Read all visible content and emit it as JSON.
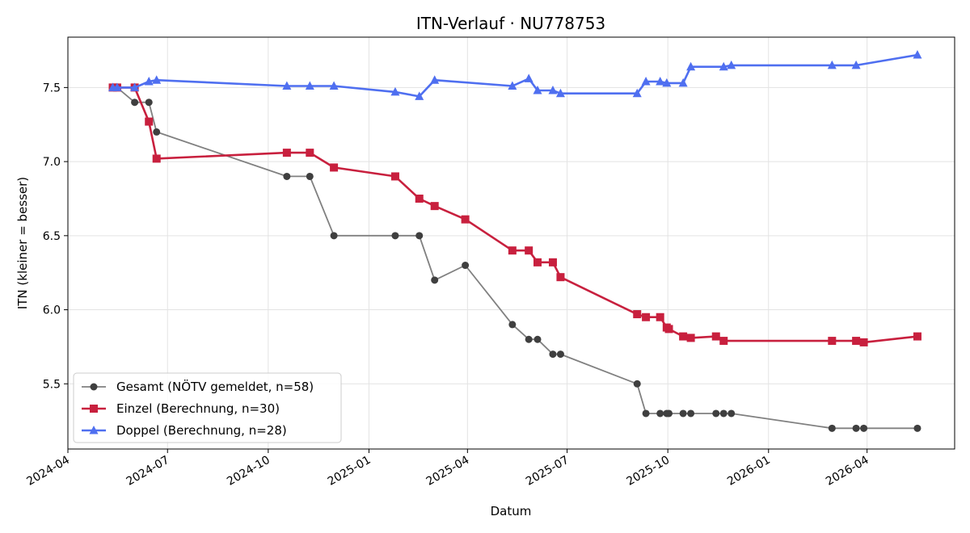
{
  "chart_data": {
    "type": "line",
    "title": "ITN-Verlauf · NU778753",
    "xlabel": "Datum",
    "ylabel": "ITN  (kleiner = besser)",
    "xlim": [
      "2024-04-01",
      "2026-06-20"
    ],
    "ylim": [
      5.06,
      7.84
    ],
    "x_ticks": [
      "2024-04",
      "2024-07",
      "2024-10",
      "2025-01",
      "2025-04",
      "2025-07",
      "2025-10",
      "2026-01",
      "2026-04"
    ],
    "y_ticks": [
      "5.5",
      "6.0",
      "6.5",
      "7.0",
      "7.5"
    ],
    "grid": true,
    "legend_position": "lower-left",
    "series": [
      {
        "name": "Gesamt (NÖTV gemeldet, n=58)",
        "color": "#555555",
        "marker": "circle",
        "points": [
          [
            "2024-05-12",
            7.5
          ],
          [
            "2024-05-16",
            7.5
          ],
          [
            "2024-06-01",
            7.4
          ],
          [
            "2024-06-14",
            7.4
          ],
          [
            "2024-06-21",
            7.2
          ],
          [
            "2024-10-18",
            6.9
          ],
          [
            "2024-11-08",
            6.9
          ],
          [
            "2024-11-30",
            6.5
          ],
          [
            "2025-01-25",
            6.5
          ],
          [
            "2025-02-16",
            6.5
          ],
          [
            "2025-03-02",
            6.2
          ],
          [
            "2025-03-30",
            6.3
          ],
          [
            "2025-05-12",
            5.9
          ],
          [
            "2025-05-27",
            5.8
          ],
          [
            "2025-06-04",
            5.8
          ],
          [
            "2025-06-18",
            5.7
          ],
          [
            "2025-06-25",
            5.7
          ],
          [
            "2025-09-03",
            5.5
          ],
          [
            "2025-09-11",
            5.3
          ],
          [
            "2025-09-24",
            5.3
          ],
          [
            "2025-09-30",
            5.3
          ],
          [
            "2025-10-02",
            5.3
          ],
          [
            "2025-10-15",
            5.3
          ],
          [
            "2025-10-22",
            5.3
          ],
          [
            "2025-11-14",
            5.3
          ],
          [
            "2025-11-21",
            5.3
          ],
          [
            "2025-11-28",
            5.3
          ],
          [
            "2026-02-28",
            5.2
          ],
          [
            "2026-03-22",
            5.2
          ],
          [
            "2026-03-29",
            5.2
          ],
          [
            "2026-05-17",
            5.2
          ]
        ]
      },
      {
        "name": "Einzel (Berechnung, n=30)",
        "color": "#c8203e",
        "marker": "square",
        "points": [
          [
            "2024-05-12",
            7.5
          ],
          [
            "2024-05-16",
            7.5
          ],
          [
            "2024-06-01",
            7.5
          ],
          [
            "2024-06-14",
            7.27
          ],
          [
            "2024-06-21",
            7.02
          ],
          [
            "2024-10-18",
            7.06
          ],
          [
            "2024-11-08",
            7.06
          ],
          [
            "2024-11-30",
            6.96
          ],
          [
            "2025-01-25",
            6.9
          ],
          [
            "2025-02-16",
            6.75
          ],
          [
            "2025-03-02",
            6.7
          ],
          [
            "2025-03-30",
            6.61
          ],
          [
            "2025-05-12",
            6.4
          ],
          [
            "2025-05-27",
            6.4
          ],
          [
            "2025-06-04",
            6.32
          ],
          [
            "2025-06-18",
            6.32
          ],
          [
            "2025-06-25",
            6.22
          ],
          [
            "2025-09-03",
            5.97
          ],
          [
            "2025-09-11",
            5.95
          ],
          [
            "2025-09-24",
            5.95
          ],
          [
            "2025-09-30",
            5.88
          ],
          [
            "2025-10-02",
            5.87
          ],
          [
            "2025-10-15",
            5.82
          ],
          [
            "2025-10-22",
            5.81
          ],
          [
            "2025-11-14",
            5.82
          ],
          [
            "2025-11-21",
            5.79
          ],
          [
            "2026-02-28",
            5.79
          ],
          [
            "2026-03-22",
            5.79
          ],
          [
            "2026-03-29",
            5.78
          ],
          [
            "2026-05-17",
            5.82
          ]
        ]
      },
      {
        "name": "Doppel (Berechnung, n=28)",
        "color": "#4f6ff0",
        "marker": "triangle",
        "points": [
          [
            "2024-05-12",
            7.5
          ],
          [
            "2024-05-16",
            7.5
          ],
          [
            "2024-06-01",
            7.5
          ],
          [
            "2024-06-14",
            7.54
          ],
          [
            "2024-06-21",
            7.55
          ],
          [
            "2024-10-18",
            7.51
          ],
          [
            "2024-11-08",
            7.51
          ],
          [
            "2024-11-30",
            7.51
          ],
          [
            "2025-01-25",
            7.47
          ],
          [
            "2025-02-16",
            7.44
          ],
          [
            "2025-03-02",
            7.55
          ],
          [
            "2025-05-12",
            7.51
          ],
          [
            "2025-05-27",
            7.56
          ],
          [
            "2025-06-04",
            7.48
          ],
          [
            "2025-06-18",
            7.48
          ],
          [
            "2025-06-25",
            7.46
          ],
          [
            "2025-09-03",
            7.46
          ],
          [
            "2025-09-11",
            7.54
          ],
          [
            "2025-09-24",
            7.54
          ],
          [
            "2025-09-30",
            7.53
          ],
          [
            "2025-10-15",
            7.53
          ],
          [
            "2025-10-22",
            7.64
          ],
          [
            "2025-11-21",
            7.64
          ],
          [
            "2025-11-28",
            7.65
          ],
          [
            "2026-02-28",
            7.65
          ],
          [
            "2026-03-22",
            7.65
          ],
          [
            "2026-05-17",
            7.72
          ]
        ]
      }
    ]
  }
}
